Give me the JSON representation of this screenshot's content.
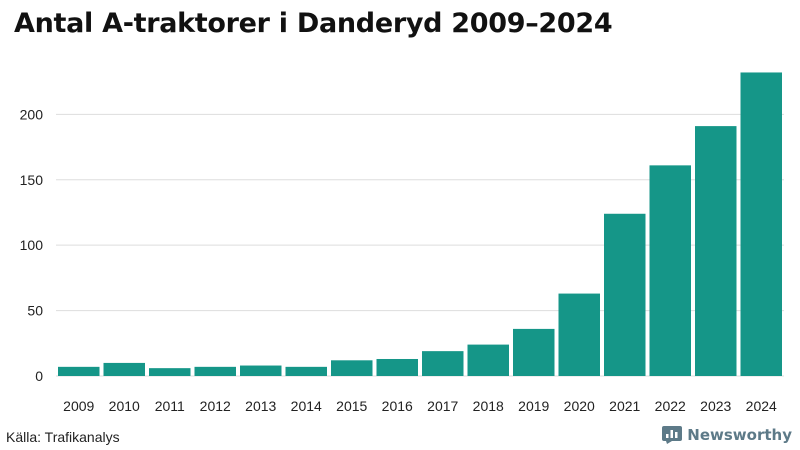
{
  "colors": {
    "bar": "#159688",
    "grid": "#dddddd",
    "axis": "#555555",
    "brand": "#5d7a88"
  },
  "footer": {
    "source": "Källa: Trafikanalys",
    "brand": "Newsworthy"
  },
  "chart_data": {
    "type": "bar",
    "title": "Antal A-traktorer i Danderyd 2009–2024",
    "xlabel": "",
    "ylabel": "",
    "categories": [
      "2009",
      "2010",
      "2011",
      "2012",
      "2013",
      "2014",
      "2015",
      "2016",
      "2017",
      "2018",
      "2019",
      "2020",
      "2021",
      "2022",
      "2023",
      "2024"
    ],
    "values": [
      7,
      10,
      6,
      7,
      8,
      7,
      12,
      13,
      19,
      24,
      36,
      63,
      124,
      161,
      191,
      232
    ],
    "yticks": [
      0,
      50,
      100,
      150,
      200
    ],
    "ylim": [
      0,
      240
    ],
    "grid": true,
    "legend": "none"
  }
}
